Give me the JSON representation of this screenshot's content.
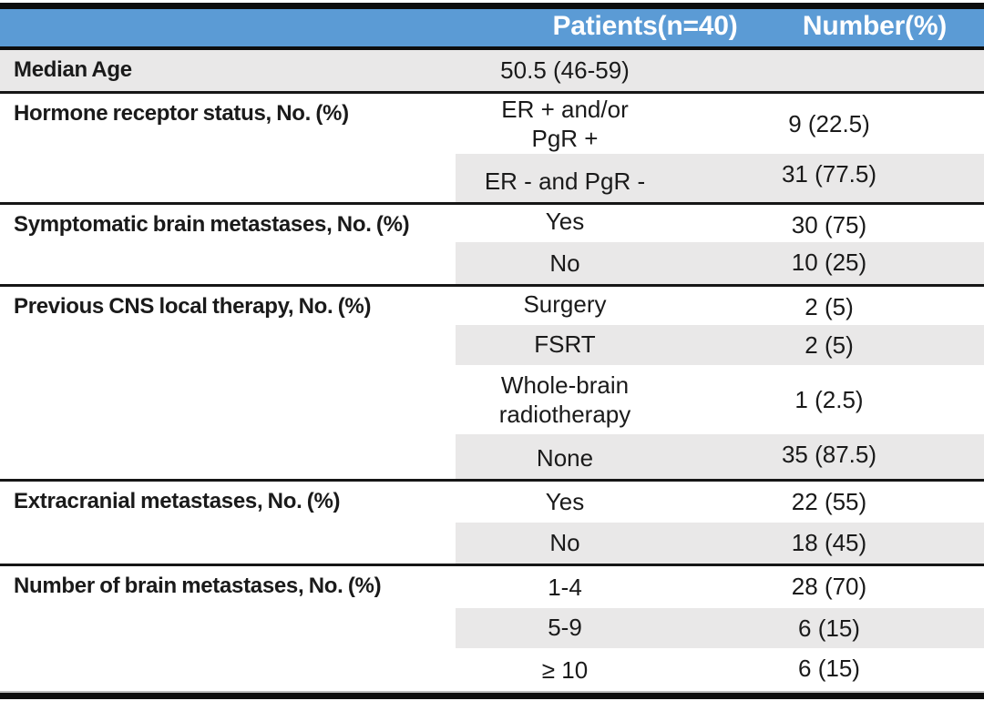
{
  "colors": {
    "header_blue": "#5b9bd5",
    "shade_gray": "#e9e8e8",
    "line_dark": "#161616",
    "bar_black": "#0d0d0d",
    "text_dark": "#1a1a1a"
  },
  "table": {
    "header": {
      "col2": "Patients(n=40)",
      "col3": "Number(%)"
    },
    "sections": [
      {
        "label": "Median Age",
        "rows": [
          {
            "value": "50.5 (46-59)",
            "number": ""
          }
        ]
      },
      {
        "label": "Hormone receptor status, No. (%)",
        "rows": [
          {
            "value_lines": [
              "ER + and/or",
              "PgR +"
            ],
            "number": "9 (22.5)"
          },
          {
            "value": "ER - and PgR -",
            "number": "31 (77.5)"
          }
        ]
      },
      {
        "label": "Symptomatic brain metastases, No. (%)",
        "rows": [
          {
            "value": "Yes",
            "number": "30 (75)"
          },
          {
            "value": "No",
            "number": "10 (25)"
          }
        ]
      },
      {
        "label": "Previous CNS local therapy, No. (%)",
        "rows": [
          {
            "value": "Surgery",
            "number": "2 (5)"
          },
          {
            "value": "FSRT",
            "number": "2 (5)"
          },
          {
            "value_lines": [
              "Whole-brain",
              "radiotherapy"
            ],
            "number": "1 (2.5)"
          },
          {
            "value": "None",
            "number": "35 (87.5)"
          }
        ]
      },
      {
        "label": "Extracranial metastases, No. (%)",
        "rows": [
          {
            "value": "Yes",
            "number": "22 (55)"
          },
          {
            "value": "No",
            "number": "18 (45)"
          }
        ]
      },
      {
        "label": "Number of brain metastases, No. (%)",
        "rows": [
          {
            "value": "1-4",
            "number": "28 (70)"
          },
          {
            "value": "5-9",
            "number": "6 (15)"
          },
          {
            "value": "≥ 10",
            "number": "6 (15)"
          }
        ]
      }
    ]
  }
}
